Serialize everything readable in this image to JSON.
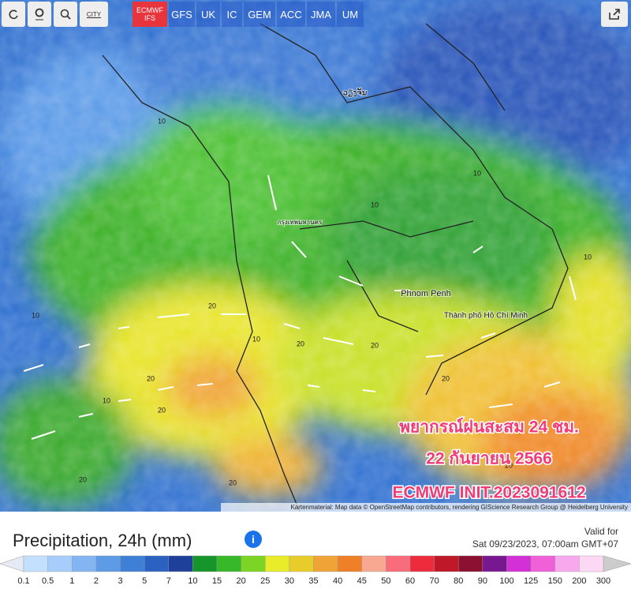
{
  "toolbar": {
    "tools": [
      "CITY"
    ],
    "models": [
      "ECMWF IFS",
      "GFS",
      "UK",
      "IC",
      "GEM",
      "ACC",
      "JMA",
      "UM"
    ],
    "active_model": 0
  },
  "map": {
    "places": [
      "กรุงเทพมหานคร",
      "Phnom Penh",
      "Thành phố Hồ Chí Minh",
      "ວຽງຈັນ"
    ],
    "contours": [
      "10",
      "10",
      "10",
      "10",
      "20",
      "20",
      "20",
      "20",
      "20",
      "10",
      "20",
      "20",
      "10",
      "10",
      "20",
      "20"
    ],
    "overlay": [
      "พยากรณ์ฝนสะสม 24 ชม.",
      "22 กันยายน 2566",
      "ECMWF INIT.2023091612"
    ],
    "attribution": "Kartenmaterial: Map data © OpenStreetMap contributors, rendering GIScience Research Group @ Heidelberg University"
  },
  "panel": {
    "title": "Precipitation, 24h (mm)",
    "info": "i",
    "valid_label": "Valid for",
    "valid_time": "Sat 09/23/2023, 07:00am GMT+07"
  },
  "legend": {
    "labels": [
      0.1,
      0.5,
      1,
      2,
      3,
      5,
      7,
      10,
      15,
      20,
      25,
      30,
      35,
      40,
      45,
      50,
      60,
      70,
      80,
      90,
      100,
      125,
      150,
      200,
      300
    ],
    "colors": [
      "#c4e0ff",
      "#a6cdfc",
      "#82b5f2",
      "#5e9be6",
      "#3e80d8",
      "#2b62c2",
      "#1e3f9a",
      "#16962a",
      "#36b828",
      "#7cd424",
      "#e8ec2a",
      "#e8cc2c",
      "#f0a436",
      "#f08028",
      "#f8a890",
      "#f86c7c",
      "#ec2c3c",
      "#c01828",
      "#8c1030",
      "#781890",
      "#d430d8",
      "#f060d8",
      "#f8a8ec",
      "#fcd8f4"
    ],
    "under_color": "#e6eaf4",
    "over_color": "#cccccc"
  }
}
